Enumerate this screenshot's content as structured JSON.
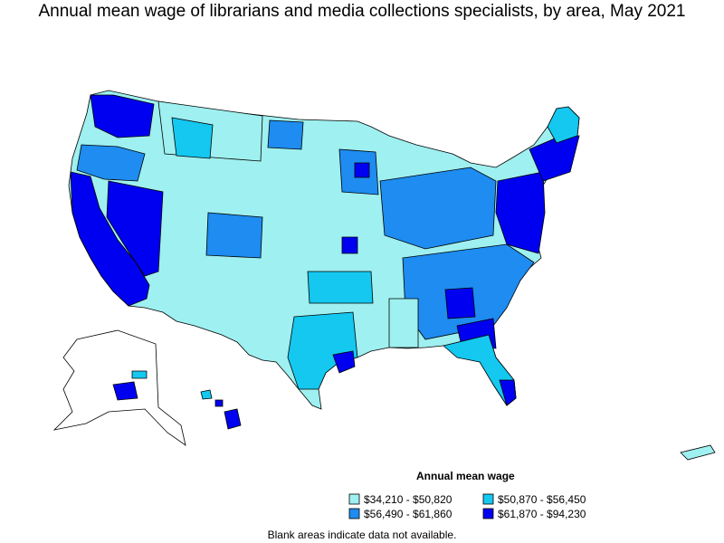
{
  "title": "Annual mean wage of librarians and media collections specialists, by area, May 2021",
  "legend": {
    "title": "Annual mean wage",
    "items": [
      {
        "label": "$34,210 - $50,820",
        "color": "#9FF0F0"
      },
      {
        "label": "$50,870 - $56,450",
        "color": "#14C8F0"
      },
      {
        "label": "$56,490 - $61,860",
        "color": "#1E8CF0"
      },
      {
        "label": "$61,870 - $94,230",
        "color": "#0000F0"
      }
    ]
  },
  "note": "Blank areas indicate data not available.",
  "colors": {
    "outline": "#000000",
    "background": "#ffffff"
  }
}
